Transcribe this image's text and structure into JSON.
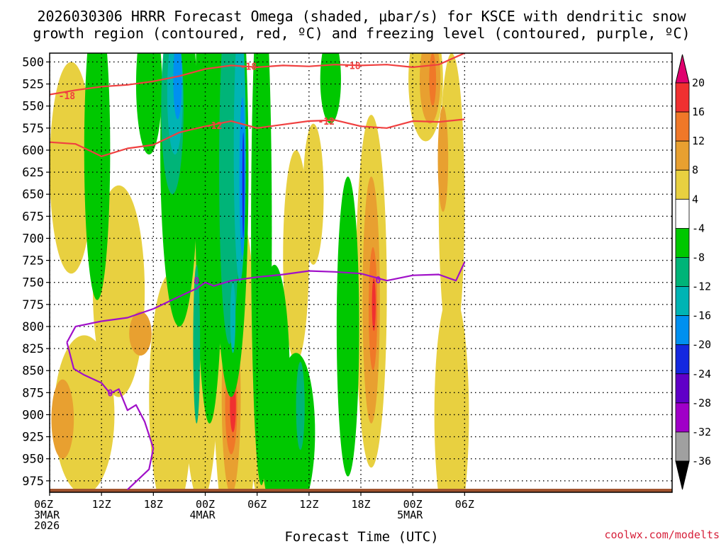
{
  "chart_data": {
    "type": "heatmap",
    "title_line1": "2026030306 HRRR Forecast Omega (shaded, μbar/s) for KSCE with dendritic snow",
    "title_line2": "growth region (contoured, red, ºC) and freezing level (contoured, purple, ºC)",
    "xlabel": "Forecast Time (UTC)",
    "credit": "coolwx.com/modelts",
    "x_range_hours": [
      0,
      72
    ],
    "x_ticks": [
      {
        "hour": 0,
        "lines": [
          "06Z",
          "3MAR",
          "2026"
        ]
      },
      {
        "hour": 6,
        "lines": [
          "12Z"
        ]
      },
      {
        "hour": 12,
        "lines": [
          "18Z"
        ]
      },
      {
        "hour": 18,
        "lines": [
          "00Z",
          "4MAR"
        ]
      },
      {
        "hour": 24,
        "lines": [
          "06Z"
        ]
      },
      {
        "hour": 30,
        "lines": [
          "12Z"
        ]
      },
      {
        "hour": 36,
        "lines": [
          "18Z"
        ]
      },
      {
        "hour": 42,
        "lines": [
          "00Z",
          "5MAR"
        ]
      },
      {
        "hour": 48,
        "lines": [
          "06Z"
        ]
      }
    ],
    "y_range_hpa": [
      988,
      490
    ],
    "y_ticks": [
      "500",
      "525",
      "550",
      "575",
      "600",
      "625",
      "650",
      "675",
      "700",
      "725",
      "750",
      "775",
      "800",
      "825",
      "850",
      "875",
      "900",
      "925",
      "950",
      "975"
    ],
    "grid": true,
    "colorbar": {
      "labels": [
        "20",
        "16",
        "12",
        "8",
        "4",
        "-4",
        "-8",
        "-12",
        "-16",
        "-20",
        "-24",
        "-28",
        "-32",
        "-36"
      ],
      "colors": {
        "over": "#e0006e",
        "c16_20": "#f03030",
        "c12_16": "#f07828",
        "c8_12": "#e8a030",
        "c4_8": "#e8d040",
        "neutral": "#ffffff",
        "cm8_m4": "#00c800",
        "cm12_m8": "#00b478",
        "cm16_m12": "#00b4b4",
        "cm20_m16": "#0090f0",
        "cm24_m20": "#1428e0",
        "cm28_m24": "#6000c8",
        "cm32_m28": "#a000c8",
        "cm36_m32": "#a0a0a0",
        "under": "#000000"
      }
    },
    "contours": [
      {
        "label": "-18",
        "color": "#f04040",
        "points": [
          [
            0,
            537
          ],
          [
            3,
            532
          ],
          [
            6,
            528
          ],
          [
            9,
            526
          ],
          [
            12,
            522
          ],
          [
            15,
            516
          ],
          [
            18,
            508
          ],
          [
            21,
            504
          ],
          [
            24,
            506
          ],
          [
            27,
            504
          ],
          [
            30,
            505
          ],
          [
            33,
            503
          ],
          [
            36,
            504
          ],
          [
            39,
            503
          ],
          [
            42,
            506
          ],
          [
            45,
            503
          ],
          [
            48,
            490
          ]
        ],
        "label_at": [
          [
            2,
            538
          ],
          [
            23,
            505
          ],
          [
            35,
            504
          ]
        ]
      },
      {
        "label": "-12",
        "color": "#f04040",
        "points": [
          [
            0,
            591
          ],
          [
            3,
            593
          ],
          [
            6,
            607
          ],
          [
            9,
            598
          ],
          [
            12,
            594
          ],
          [
            15,
            580
          ],
          [
            18,
            573
          ],
          [
            21,
            567
          ],
          [
            24,
            575
          ],
          [
            27,
            571
          ],
          [
            30,
            567
          ],
          [
            33,
            566
          ],
          [
            36,
            573
          ],
          [
            39,
            575
          ],
          [
            42,
            567
          ],
          [
            45,
            568
          ],
          [
            48,
            565
          ]
        ],
        "label_at": [
          [
            19,
            572
          ],
          [
            32,
            567
          ]
        ]
      },
      {
        "label": "0",
        "color": "#a010c8",
        "points": [
          [
            2,
            818
          ],
          [
            3,
            800
          ],
          [
            6,
            794
          ],
          [
            9,
            790
          ],
          [
            12,
            780
          ],
          [
            15,
            766
          ],
          [
            17,
            757
          ],
          [
            18,
            750
          ],
          [
            19,
            754
          ],
          [
            21,
            748
          ],
          [
            24,
            744
          ],
          [
            27,
            741
          ],
          [
            30,
            737
          ],
          [
            33,
            738
          ],
          [
            36,
            740
          ],
          [
            39,
            748
          ],
          [
            42,
            742
          ],
          [
            45,
            741
          ],
          [
            47,
            748
          ],
          [
            48,
            727
          ]
        ],
        "label_at": [
          [
            17,
            748
          ],
          [
            7,
            875
          ],
          [
            38,
            747
          ]
        ]
      },
      {
        "label": "0",
        "color": "#a010c8",
        "points": [
          [
            2,
            818
          ],
          [
            2.8,
            848
          ],
          [
            4,
            855
          ],
          [
            6,
            864
          ],
          [
            7,
            876
          ],
          [
            8,
            871
          ],
          [
            9,
            895
          ],
          [
            10,
            889
          ],
          [
            11,
            908
          ],
          [
            12,
            938
          ],
          [
            11.5,
            962
          ],
          [
            9,
            985
          ]
        ],
        "label_at": []
      }
    ],
    "omega_fields": [
      {
        "colorkey": "c4_8",
        "ellipses": [
          [
            2.5,
            620,
            2.5,
            120
          ],
          [
            8,
            760,
            3,
            120
          ],
          [
            4,
            900,
            3.5,
            90
          ],
          [
            14,
            880,
            2.5,
            140
          ],
          [
            17.5,
            840,
            2,
            160
          ],
          [
            21.5,
            860,
            2.5,
            200
          ],
          [
            24.5,
            880,
            1.5,
            120
          ],
          [
            28.5,
            720,
            1.5,
            120
          ],
          [
            30.5,
            650,
            1.2,
            80
          ],
          [
            37.2,
            760,
            1.8,
            200
          ],
          [
            43.5,
            520,
            2,
            70
          ],
          [
            46.5,
            660,
            1.5,
            170
          ],
          [
            46.5,
            900,
            2,
            140
          ]
        ]
      },
      {
        "colorkey": "c8_12",
        "ellipses": [
          [
            1.5,
            905,
            1.3,
            45
          ],
          [
            10.5,
            808,
            1.3,
            25
          ],
          [
            18,
            800,
            0.7,
            50
          ],
          [
            21,
            880,
            1.1,
            110
          ],
          [
            20.5,
            812,
            0.5,
            25
          ],
          [
            24.5,
            863,
            0.6,
            50
          ],
          [
            37.2,
            770,
            1,
            140
          ],
          [
            44,
            520,
            1.2,
            50
          ],
          [
            45.5,
            610,
            0.6,
            60
          ]
        ]
      },
      {
        "colorkey": "c12_16",
        "ellipses": [
          [
            21,
            890,
            0.7,
            55
          ],
          [
            20.4,
            812,
            0.35,
            28
          ],
          [
            37.4,
            780,
            0.5,
            70
          ],
          [
            44.3,
            520,
            0.4,
            30
          ]
        ]
      },
      {
        "colorkey": "c16_20",
        "ellipses": [
          [
            21.2,
            890,
            0.35,
            30
          ],
          [
            37.5,
            775,
            0.22,
            30
          ]
        ]
      },
      {
        "colorkey": "cm8_m4",
        "ellipses": [
          [
            5.5,
            600,
            1.5,
            170
          ],
          [
            11.5,
            525,
            1.5,
            80
          ],
          [
            15,
            600,
            2.2,
            200
          ],
          [
            18.5,
            610,
            1.7,
            300
          ],
          [
            21,
            620,
            2,
            260
          ],
          [
            24.5,
            690,
            1.2,
            290
          ],
          [
            26,
            870,
            1.8,
            140
          ],
          [
            28.5,
            920,
            2.2,
            90
          ],
          [
            34.5,
            800,
            1.3,
            170
          ],
          [
            32.5,
            520,
            1.2,
            50
          ]
        ]
      },
      {
        "colorkey": "cm12_m8",
        "ellipses": [
          [
            14.2,
            550,
            1.3,
            100
          ],
          [
            20.8,
            620,
            1.2,
            200
          ],
          [
            17,
            820,
            0.4,
            90
          ],
          [
            29,
            890,
            0.5,
            50
          ]
        ]
      },
      {
        "colorkey": "cm16_m12",
        "ellipses": [
          [
            14.5,
            535,
            0.9,
            70
          ],
          [
            22,
            600,
            0.7,
            150
          ],
          [
            21.2,
            790,
            0.3,
            40
          ]
        ]
      },
      {
        "colorkey": "cm20_m16",
        "ellipses": [
          [
            14.8,
            520,
            0.5,
            45
          ],
          [
            22.3,
            630,
            0.35,
            90
          ]
        ]
      },
      {
        "colorkey": "cm24_m20",
        "ellipses": [
          [
            22.4,
            640,
            0.12,
            60
          ]
        ]
      }
    ],
    "terrain_color": "#a0522d"
  }
}
